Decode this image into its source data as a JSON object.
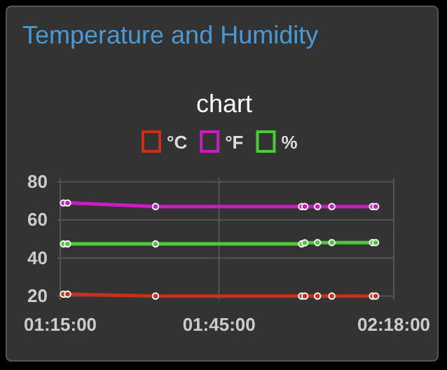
{
  "chart_data": {
    "type": "line",
    "subtitle": "Temperature and Humidity",
    "title": "chart",
    "x": [
      1.26,
      1.273,
      1.55,
      2.01,
      2.02,
      2.06,
      2.105,
      2.233,
      2.243
    ],
    "series": [
      {
        "name": "°C",
        "color": "#c9301c",
        "values": [
          21,
          21,
          20,
          20,
          20,
          20,
          20,
          20,
          20
        ]
      },
      {
        "name": "°F",
        "color": "#c81ebf",
        "values": [
          68.9,
          68.9,
          67,
          67,
          67,
          67,
          67,
          67,
          67
        ]
      },
      {
        "name": "%",
        "color": "#4ec93b",
        "values": [
          47.4,
          47.4,
          47.4,
          47.4,
          48,
          48.1,
          48.1,
          48.1,
          48.1
        ]
      }
    ],
    "xlim": [
      1.25,
      2.3
    ],
    "xticks": [
      {
        "value": 1.25,
        "label": "01:15:00"
      },
      {
        "value": 1.75,
        "label": "01:45:00"
      },
      {
        "value": 2.3,
        "label": "02:18:00"
      }
    ],
    "ylim": [
      18,
      82
    ],
    "yticks": [
      20,
      40,
      60,
      80
    ],
    "grid": true,
    "legend": "top",
    "marker": "circle",
    "line_style": "solid"
  }
}
